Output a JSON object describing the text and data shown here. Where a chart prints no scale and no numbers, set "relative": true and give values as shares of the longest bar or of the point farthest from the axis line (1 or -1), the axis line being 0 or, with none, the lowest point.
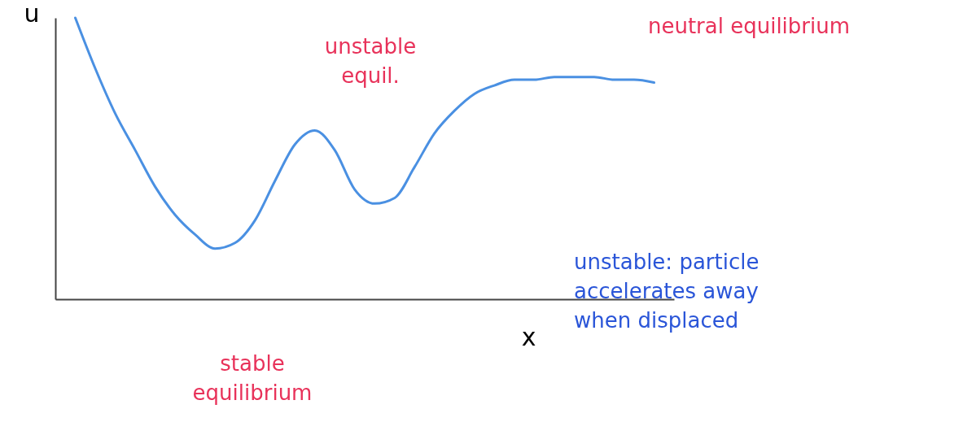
{
  "chart_data": {
    "type": "line",
    "relative": true,
    "xlabel": "x",
    "ylabel": "u",
    "categories": [
      null,
      null,
      null,
      null,
      null,
      null,
      null,
      null,
      null,
      null,
      null,
      null,
      null,
      null,
      null,
      null,
      null,
      null,
      null,
      null,
      null,
      null,
      null,
      null,
      null,
      null,
      null,
      null,
      null,
      null
    ],
    "series": [
      {
        "color": "#4a90e2",
        "values": [
          1.0,
          0.82,
          0.66,
          0.53,
          0.4,
          0.3,
          0.23,
          0.18,
          0.2,
          0.28,
          0.42,
          0.55,
          0.6,
          0.53,
          0.39,
          0.34,
          0.36,
          0.47,
          0.59,
          0.67,
          0.73,
          0.76,
          0.78,
          0.78,
          0.79,
          0.79,
          0.79,
          0.78,
          0.78,
          0.77
        ]
      }
    ],
    "annotations": [
      "unstable equil.",
      "neutral equilibrium",
      "stable equilibrium",
      "unstable: particle accelerates away when displaced"
    ],
    "tick_labels": false,
    "grid": false,
    "marker": "none",
    "line_style": "solid"
  }
}
